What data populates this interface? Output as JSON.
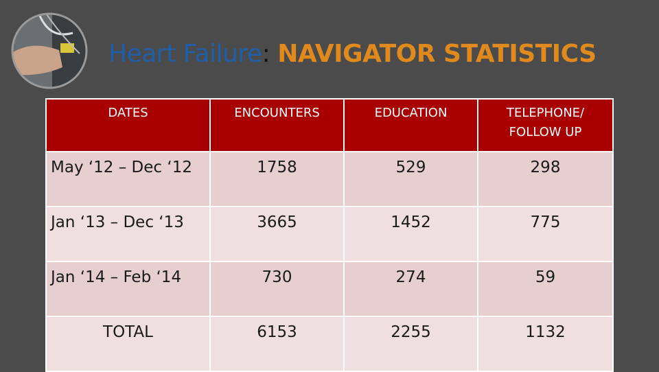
{
  "header": {
    "title": {
      "lead": "Heart Failure",
      "colon": ":",
      "emphasis": "NAVIGATOR STATISTICS"
    }
  },
  "table": {
    "header": [
      "DATES",
      "ENCOUNTERS",
      "EDUCATION",
      "TELEPHONE/ FOLLOW UP"
    ],
    "rows": [
      [
        "May ‘12 – Dec ‘12",
        1758,
        529,
        298
      ],
      [
        "Jan ‘13 – Dec ‘13",
        3665,
        1452,
        775
      ],
      [
        "Jan ‘14 – Feb ‘14",
        730,
        274,
        59
      ],
      [
        "TOTAL",
        6153,
        2255,
        1132
      ]
    ]
  }
}
